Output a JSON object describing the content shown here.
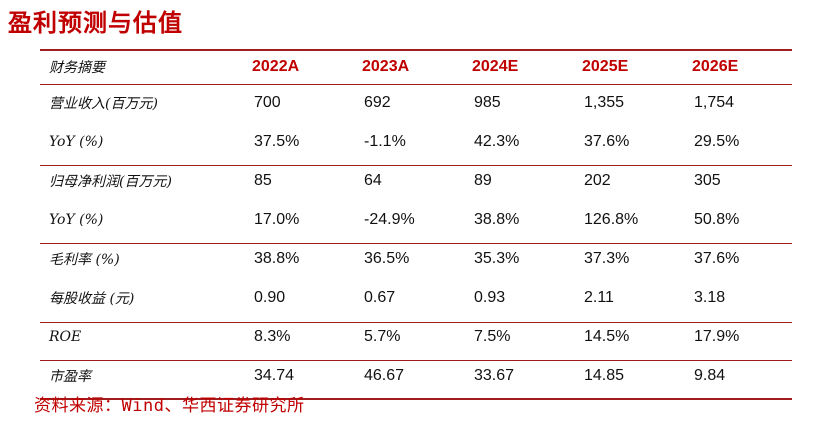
{
  "title": "盈利预测与估值",
  "table": {
    "header_label": "财务摘要",
    "years": [
      "2022A",
      "2023A",
      "2024E",
      "2025E",
      "2026E"
    ],
    "rows": [
      {
        "label": "营业收入(百万元)",
        "values": [
          "700",
          "692",
          "985",
          "1,355",
          "1,754"
        ]
      },
      {
        "label": "YoY (%)",
        "values": [
          "37.5%",
          "-1.1%",
          "42.3%",
          "37.6%",
          "29.5%"
        ]
      },
      {
        "label": "归母净利润(百万元)",
        "values": [
          "85",
          "64",
          "89",
          "202",
          "305"
        ]
      },
      {
        "label": "YoY (%)",
        "values": [
          "17.0%",
          "-24.9%",
          "38.8%",
          "126.8%",
          "50.8%"
        ]
      },
      {
        "label": "毛利率 (%)",
        "values": [
          "38.8%",
          "36.5%",
          "35.3%",
          "37.3%",
          "37.6%"
        ]
      },
      {
        "label": "每股收益 (元)",
        "values": [
          "0.90",
          "0.67",
          "0.93",
          "2.11",
          "3.18"
        ]
      },
      {
        "label": "ROE",
        "values": [
          "8.3%",
          "5.7%",
          "7.5%",
          "14.5%",
          "17.9%"
        ]
      },
      {
        "label": "市盈率",
        "values": [
          "34.74",
          "46.67",
          "33.67",
          "14.85",
          "9.84"
        ]
      }
    ]
  },
  "source": "资料来源：Wind、华西证券研究所",
  "colors": {
    "accent": "#c00000",
    "rule": "#a11c1c",
    "text": "#111111"
  }
}
